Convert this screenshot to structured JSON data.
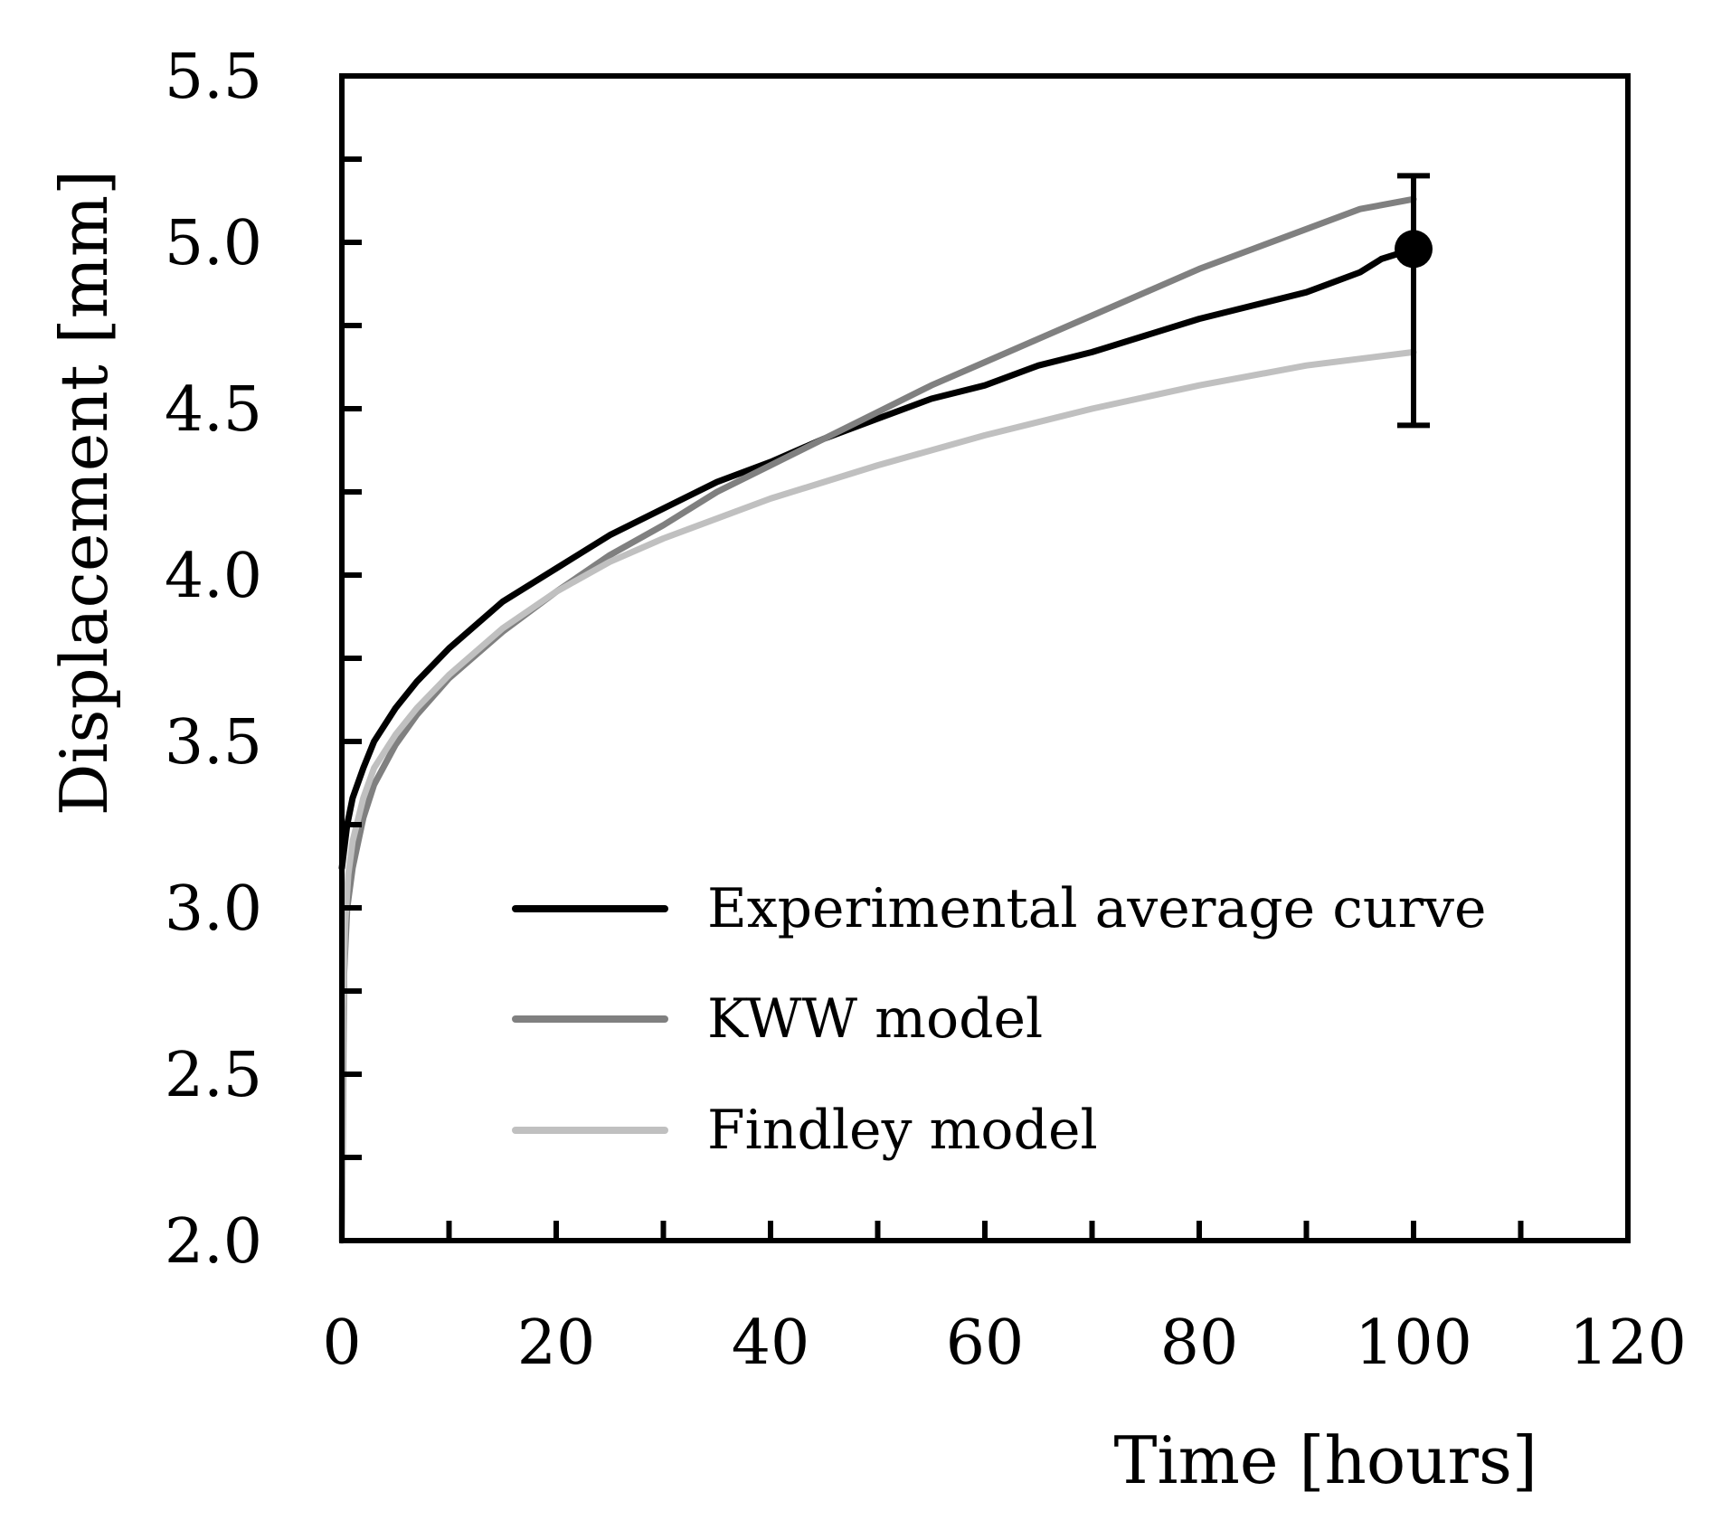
{
  "chart_data": {
    "type": "line",
    "title": "",
    "xlabel": "Time [hours]",
    "ylabel": "Displacement [mm]",
    "xlim": [
      0,
      120
    ],
    "ylim": [
      2.0,
      5.5
    ],
    "xticks": [
      0,
      20,
      40,
      60,
      80,
      100,
      120
    ],
    "xtick_labels": [
      "0",
      "20",
      "40",
      "60",
      "80",
      "100",
      "120"
    ],
    "yticks": [
      2.0,
      2.5,
      3.0,
      3.5,
      4.0,
      4.5,
      5.0,
      5.5
    ],
    "ytick_labels": [
      "2.0",
      "2.5",
      "3.0",
      "3.5",
      "4.0",
      "4.5",
      "5.0",
      "5.5"
    ],
    "x_minor_step": 10,
    "y_minor_step": 0.25,
    "grid": false,
    "legend_position": "lower-right",
    "series": [
      {
        "name": "Experimental average curve",
        "color": "#000000",
        "x": [
          0,
          0.5,
          1,
          2,
          3,
          5,
          7,
          10,
          15,
          20,
          25,
          30,
          35,
          40,
          45,
          50,
          55,
          60,
          65,
          70,
          75,
          80,
          85,
          90,
          95,
          97,
          99
        ],
        "y": [
          3.12,
          3.25,
          3.33,
          3.42,
          3.5,
          3.6,
          3.68,
          3.78,
          3.92,
          4.02,
          4.12,
          4.2,
          4.28,
          4.34,
          4.41,
          4.47,
          4.53,
          4.57,
          4.63,
          4.67,
          4.72,
          4.77,
          4.81,
          4.85,
          4.91,
          4.95,
          4.97
        ]
      },
      {
        "name": "KWW model",
        "color": "#808080",
        "x": [
          0,
          0.2,
          0.5,
          1,
          2,
          3,
          5,
          7,
          10,
          15,
          20,
          25,
          30,
          35,
          40,
          45,
          50,
          55,
          60,
          65,
          70,
          75,
          80,
          85,
          90,
          95,
          100
        ],
        "y": [
          2.0,
          2.8,
          3.0,
          3.12,
          3.27,
          3.37,
          3.49,
          3.58,
          3.69,
          3.83,
          3.95,
          4.06,
          4.15,
          4.25,
          4.33,
          4.41,
          4.49,
          4.57,
          4.64,
          4.71,
          4.78,
          4.85,
          4.92,
          4.98,
          5.04,
          5.1,
          5.13
        ]
      },
      {
        "name": "Findley model",
        "color": "#c0c0c0",
        "x": [
          0,
          0.1,
          0.3,
          0.6,
          1,
          2,
          3,
          5,
          7,
          10,
          15,
          20,
          25,
          30,
          40,
          50,
          60,
          70,
          80,
          90,
          100
        ],
        "y": [
          2.0,
          2.7,
          2.95,
          3.1,
          3.2,
          3.33,
          3.42,
          3.52,
          3.6,
          3.7,
          3.84,
          3.95,
          4.04,
          4.11,
          4.23,
          4.33,
          4.42,
          4.5,
          4.57,
          4.63,
          4.67
        ]
      }
    ],
    "endpoint": {
      "x": 100,
      "y": 4.98,
      "error_low": 4.45,
      "error_high": 5.2,
      "color": "#000000"
    }
  }
}
